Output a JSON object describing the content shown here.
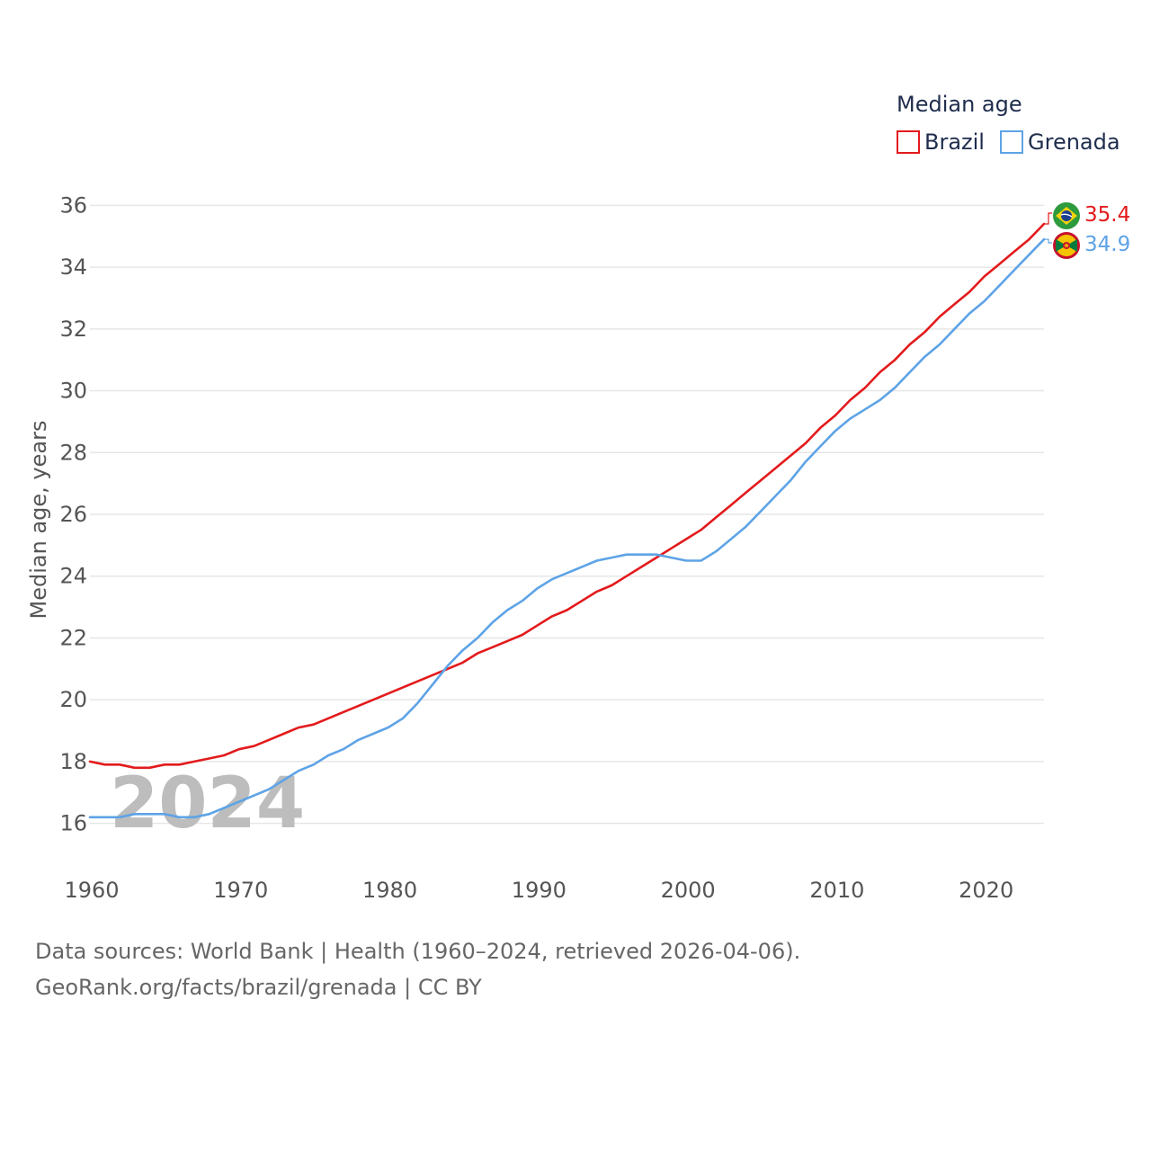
{
  "chart_data": {
    "type": "line",
    "title": "Median age",
    "ylabel": "Median age, years",
    "xlabel": "",
    "xlim": [
      1960,
      2024
    ],
    "ylim": [
      15,
      37
    ],
    "x_ticks": [
      1960,
      1970,
      1980,
      1990,
      2000,
      2010,
      2020
    ],
    "y_ticks": [
      16,
      18,
      20,
      22,
      24,
      26,
      28,
      30,
      32,
      34,
      36
    ],
    "grid": true,
    "legend_position": "top-right",
    "current_year": "2024",
    "x": [
      1960,
      1961,
      1962,
      1963,
      1964,
      1965,
      1966,
      1967,
      1968,
      1969,
      1970,
      1971,
      1972,
      1973,
      1974,
      1975,
      1976,
      1977,
      1978,
      1979,
      1980,
      1981,
      1982,
      1983,
      1984,
      1985,
      1986,
      1987,
      1988,
      1989,
      1990,
      1991,
      1992,
      1993,
      1994,
      1995,
      1996,
      1997,
      1998,
      1999,
      2000,
      2001,
      2002,
      2003,
      2004,
      2005,
      2006,
      2007,
      2008,
      2009,
      2010,
      2011,
      2012,
      2013,
      2014,
      2015,
      2016,
      2017,
      2018,
      2019,
      2020,
      2021,
      2022,
      2023,
      2024
    ],
    "series": [
      {
        "name": "Brazil",
        "color": "#e31a1c",
        "end_label": "35.4",
        "values": [
          18.0,
          17.9,
          17.9,
          17.8,
          17.8,
          17.9,
          17.9,
          18.0,
          18.1,
          18.2,
          18.4,
          18.5,
          18.7,
          18.9,
          19.1,
          19.2,
          19.4,
          19.6,
          19.8,
          20.0,
          20.2,
          20.4,
          20.6,
          20.8,
          21.0,
          21.2,
          21.5,
          21.7,
          21.9,
          22.1,
          22.4,
          22.7,
          22.9,
          23.2,
          23.5,
          23.7,
          24.0,
          24.3,
          24.6,
          24.9,
          25.2,
          25.5,
          25.9,
          26.3,
          26.7,
          27.1,
          27.5,
          27.9,
          28.3,
          28.8,
          29.2,
          29.7,
          30.1,
          30.6,
          31.0,
          31.5,
          31.9,
          32.4,
          32.8,
          33.2,
          33.7,
          34.1,
          34.5,
          34.9,
          35.4
        ]
      },
      {
        "name": "Grenada",
        "color": "#5ea3e6",
        "end_label": "34.9",
        "values": [
          16.2,
          16.2,
          16.2,
          16.3,
          16.3,
          16.3,
          16.2,
          16.2,
          16.3,
          16.5,
          16.7,
          16.9,
          17.1,
          17.4,
          17.7,
          17.9,
          18.2,
          18.4,
          18.7,
          18.9,
          19.1,
          19.4,
          19.9,
          20.5,
          21.1,
          21.6,
          22.0,
          22.5,
          22.9,
          23.2,
          23.6,
          23.9,
          24.1,
          24.3,
          24.5,
          24.6,
          24.7,
          24.7,
          24.7,
          24.6,
          24.5,
          24.5,
          24.8,
          25.2,
          25.6,
          26.1,
          26.6,
          27.1,
          27.7,
          28.2,
          28.7,
          29.1,
          29.4,
          29.7,
          30.1,
          30.6,
          31.1,
          31.5,
          32.0,
          32.5,
          32.9,
          33.4,
          33.9,
          34.4,
          34.9
        ]
      }
    ]
  },
  "footer": {
    "source_line": "Data sources: World Bank | Health (1960–2024, retrieved 2026-04-06).",
    "link_line": "GeoRank.org/facts/brazil/grenada | CC BY"
  },
  "icons": {
    "brazil_flag": "brazil-flag-icon",
    "grenada_flag": "grenada-flag-icon"
  }
}
